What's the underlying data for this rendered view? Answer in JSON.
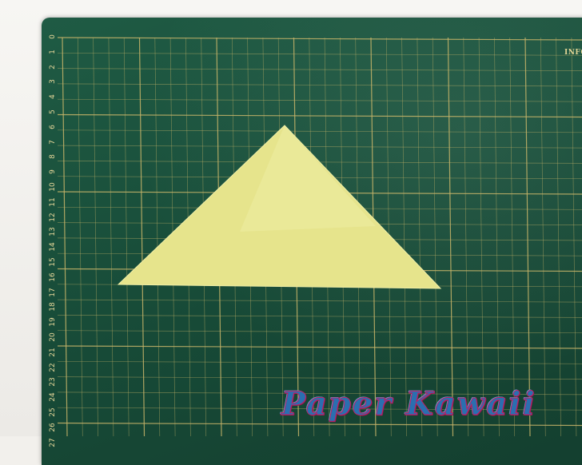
{
  "scene": {
    "description_label": "Cutting mat with yellow origami paper triangle",
    "mat_color": "#1c5440",
    "grid_line_color": "#c8b56a",
    "paper_color": "#e8e68a",
    "ruler_numbers": [
      "0",
      "1",
      "2",
      "3",
      "4",
      "5",
      "6",
      "7",
      "8",
      "9",
      "10",
      "11",
      "12",
      "13",
      "14",
      "15",
      "16",
      "17",
      "18",
      "19",
      "20",
      "21",
      "22",
      "23",
      "24",
      "25",
      "26",
      "27"
    ],
    "brand_text": "INFO",
    "watermark_text": "Paper Kawaii"
  }
}
